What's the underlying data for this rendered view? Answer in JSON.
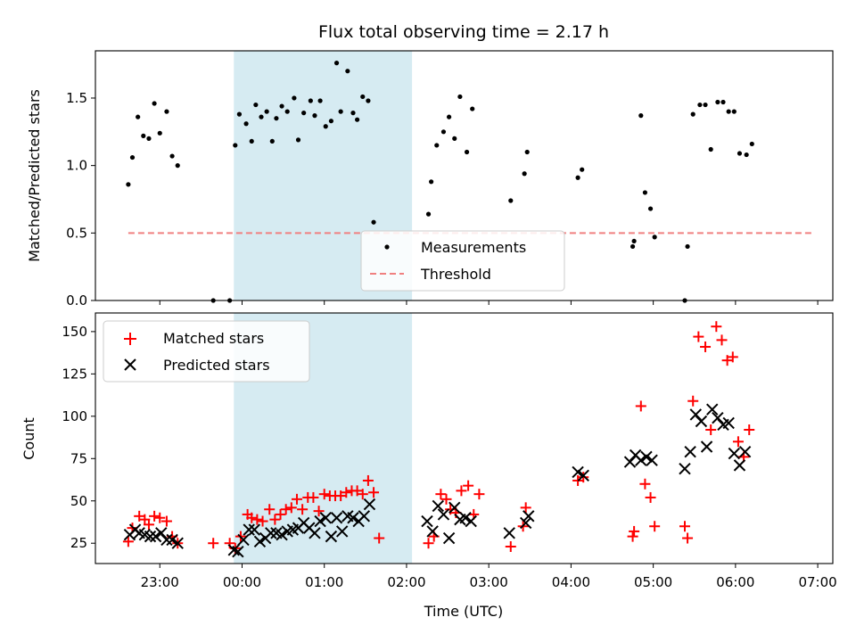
{
  "chart_data": [
    {
      "type": "scatter",
      "title": "Flux total observing time = 2.17 h",
      "xlabel": "",
      "ylabel": "Matched/Predicted stars",
      "xlim": [
        "22:13",
        "07:11"
      ],
      "ylim": [
        0,
        1.85
      ],
      "ytick_labels": [
        "0.0",
        "0.5",
        "1.0",
        "1.5"
      ],
      "yticks": [
        0,
        0.5,
        1.0,
        1.5
      ],
      "highlight_span": {
        "start": "23:54",
        "end": "02:04"
      },
      "legend": {
        "position": "lower-center",
        "entries": [
          "Measurements",
          "Threshold"
        ]
      },
      "threshold": {
        "name": "Threshold",
        "value": 0.5,
        "x": [
          "22:37",
          "06:57"
        ],
        "color": "#f08080"
      },
      "series": [
        {
          "name": "Measurements",
          "color": "#000000",
          "points": [
            [
              "22:37",
              0.86
            ],
            [
              "22:40",
              1.06
            ],
            [
              "22:44",
              1.36
            ],
            [
              "22:48",
              1.22
            ],
            [
              "22:52",
              1.2
            ],
            [
              "22:56",
              1.46
            ],
            [
              "23:00",
              1.24
            ],
            [
              "23:05",
              1.4
            ],
            [
              "23:09",
              1.07
            ],
            [
              "23:13",
              1.0
            ],
            [
              "23:39",
              0.0
            ],
            [
              "23:51",
              0.0
            ],
            [
              "23:55",
              1.15
            ],
            [
              "23:58",
              1.38
            ],
            [
              "00:03",
              1.31
            ],
            [
              "00:07",
              1.18
            ],
            [
              "00:10",
              1.45
            ],
            [
              "00:14",
              1.36
            ],
            [
              "00:18",
              1.4
            ],
            [
              "00:22",
              1.18
            ],
            [
              "00:25",
              1.35
            ],
            [
              "00:29",
              1.44
            ],
            [
              "00:33",
              1.4
            ],
            [
              "00:38",
              1.5
            ],
            [
              "00:41",
              1.19
            ],
            [
              "00:45",
              1.39
            ],
            [
              "00:50",
              1.48
            ],
            [
              "00:53",
              1.37
            ],
            [
              "00:57",
              1.48
            ],
            [
              "01:01",
              1.29
            ],
            [
              "01:05",
              1.33
            ],
            [
              "01:09",
              1.76
            ],
            [
              "01:12",
              1.4
            ],
            [
              "01:17",
              1.7
            ],
            [
              "01:21",
              1.39
            ],
            [
              "01:24",
              1.34
            ],
            [
              "01:28",
              1.51
            ],
            [
              "01:32",
              1.48
            ],
            [
              "01:36",
              0.58
            ],
            [
              "02:16",
              0.64
            ],
            [
              "02:18",
              0.88
            ],
            [
              "02:22",
              1.15
            ],
            [
              "02:27",
              1.25
            ],
            [
              "02:31",
              1.36
            ],
            [
              "02:35",
              1.2
            ],
            [
              "02:39",
              1.51
            ],
            [
              "02:44",
              1.1
            ],
            [
              "02:48",
              1.42
            ],
            [
              "03:16",
              0.74
            ],
            [
              "03:26",
              0.94
            ],
            [
              "03:28",
              1.1
            ],
            [
              "04:05",
              0.91
            ],
            [
              "04:08",
              0.97
            ],
            [
              "04:45",
              0.4
            ],
            [
              "04:46",
              0.44
            ],
            [
              "04:51",
              1.37
            ],
            [
              "04:54",
              0.8
            ],
            [
              "04:58",
              0.68
            ],
            [
              "05:01",
              0.47
            ],
            [
              "05:23",
              0.0
            ],
            [
              "05:25",
              0.4
            ],
            [
              "05:29",
              1.38
            ],
            [
              "05:34",
              1.45
            ],
            [
              "05:38",
              1.45
            ],
            [
              "05:42",
              1.12
            ],
            [
              "05:47",
              1.47
            ],
            [
              "05:51",
              1.47
            ],
            [
              "05:55",
              1.4
            ],
            [
              "05:59",
              1.4
            ],
            [
              "06:03",
              1.09
            ],
            [
              "06:08",
              1.08
            ],
            [
              "06:12",
              1.16
            ]
          ]
        }
      ]
    },
    {
      "type": "scatter",
      "title": "",
      "xlabel": "Time (UTC)",
      "ylabel": "Count",
      "xlim": [
        "22:13",
        "07:11"
      ],
      "ylim": [
        13,
        161
      ],
      "xtick_labels": [
        "23:00",
        "00:00",
        "01:00",
        "02:00",
        "03:00",
        "04:00",
        "05:00",
        "06:00",
        "07:00"
      ],
      "xticks": [
        "23:00",
        "00:00",
        "01:00",
        "02:00",
        "03:00",
        "04:00",
        "05:00",
        "06:00",
        "07:00"
      ],
      "ytick_labels": [
        "25",
        "50",
        "75",
        "100",
        "125",
        "150"
      ],
      "yticks": [
        25,
        50,
        75,
        100,
        125,
        150
      ],
      "highlight_span": {
        "start": "23:54",
        "end": "02:04"
      },
      "legend": {
        "position": "upper-left",
        "entries": [
          "Matched stars",
          "Predicted stars"
        ]
      },
      "series": [
        {
          "name": "Matched stars",
          "marker": "plus",
          "color": "#ff0000",
          "points": [
            [
              "22:37",
              26
            ],
            [
              "22:40",
              34
            ],
            [
              "22:45",
              41
            ],
            [
              "22:49",
              39
            ],
            [
              "22:52",
              36
            ],
            [
              "22:56",
              41
            ],
            [
              "23:00",
              40
            ],
            [
              "23:05",
              38
            ],
            [
              "23:09",
              29
            ],
            [
              "23:13",
              25
            ],
            [
              "23:39",
              25
            ],
            [
              "23:51",
              25
            ],
            [
              "23:55",
              22
            ],
            [
              "23:59",
              29
            ],
            [
              "00:04",
              42
            ],
            [
              "00:07",
              40
            ],
            [
              "00:11",
              39
            ],
            [
              "00:15",
              38
            ],
            [
              "00:20",
              45
            ],
            [
              "00:24",
              39
            ],
            [
              "00:28",
              42
            ],
            [
              "00:32",
              45
            ],
            [
              "00:36",
              46
            ],
            [
              "00:40",
              51
            ],
            [
              "00:44",
              45
            ],
            [
              "00:48",
              52
            ],
            [
              "00:52",
              52
            ],
            [
              "00:56",
              44
            ],
            [
              "01:00",
              54
            ],
            [
              "01:04",
              53
            ],
            [
              "01:08",
              53
            ],
            [
              "01:12",
              53
            ],
            [
              "01:16",
              55
            ],
            [
              "01:20",
              56
            ],
            [
              "01:24",
              56
            ],
            [
              "01:28",
              54
            ],
            [
              "01:32",
              62
            ],
            [
              "01:36",
              55
            ],
            [
              "01:40",
              28
            ],
            [
              "02:16",
              25
            ],
            [
              "02:20",
              29
            ],
            [
              "02:25",
              54
            ],
            [
              "02:29",
              51
            ],
            [
              "02:32",
              45
            ],
            [
              "02:36",
              43
            ],
            [
              "02:40",
              56
            ],
            [
              "02:45",
              59
            ],
            [
              "02:49",
              42
            ],
            [
              "02:53",
              54
            ],
            [
              "03:16",
              23
            ],
            [
              "03:25",
              35
            ],
            [
              "03:27",
              46
            ],
            [
              "04:05",
              62
            ],
            [
              "04:09",
              64
            ],
            [
              "04:45",
              29
            ],
            [
              "04:46",
              32
            ],
            [
              "04:51",
              106
            ],
            [
              "04:54",
              60
            ],
            [
              "04:58",
              52
            ],
            [
              "05:01",
              35
            ],
            [
              "05:23",
              35
            ],
            [
              "05:25",
              28
            ],
            [
              "05:29",
              109
            ],
            [
              "05:33",
              147
            ],
            [
              "05:38",
              141
            ],
            [
              "05:42",
              92
            ],
            [
              "05:46",
              153
            ],
            [
              "05:50",
              145
            ],
            [
              "05:54",
              133
            ],
            [
              "05:58",
              135
            ],
            [
              "06:02",
              85
            ],
            [
              "06:06",
              76
            ],
            [
              "06:10",
              92
            ]
          ]
        },
        {
          "name": "Predicted stars",
          "marker": "x",
          "color": "#000000",
          "points": [
            [
              "22:38",
              30
            ],
            [
              "22:42",
              33
            ],
            [
              "22:45",
              31
            ],
            [
              "22:49",
              30
            ],
            [
              "22:53",
              29
            ],
            [
              "22:57",
              29
            ],
            [
              "23:01",
              31
            ],
            [
              "23:05",
              27
            ],
            [
              "23:09",
              27
            ],
            [
              "23:13",
              25
            ],
            [
              "23:54",
              21
            ],
            [
              "23:57",
              20
            ],
            [
              "00:01",
              27
            ],
            [
              "00:05",
              33
            ],
            [
              "00:09",
              33
            ],
            [
              "00:13",
              26
            ],
            [
              "00:17",
              28
            ],
            [
              "00:21",
              31
            ],
            [
              "00:25",
              31
            ],
            [
              "00:29",
              30
            ],
            [
              "00:33",
              32
            ],
            [
              "00:37",
              33
            ],
            [
              "00:41",
              34
            ],
            [
              "00:45",
              37
            ],
            [
              "00:49",
              34
            ],
            [
              "00:53",
              31
            ],
            [
              "00:57",
              38
            ],
            [
              "01:01",
              40
            ],
            [
              "01:05",
              29
            ],
            [
              "01:09",
              40
            ],
            [
              "01:13",
              32
            ],
            [
              "01:17",
              41
            ],
            [
              "01:21",
              40
            ],
            [
              "01:25",
              38
            ],
            [
              "01:29",
              41
            ],
            [
              "01:33",
              48
            ],
            [
              "02:15",
              38
            ],
            [
              "02:19",
              32
            ],
            [
              "02:23",
              47
            ],
            [
              "02:27",
              42
            ],
            [
              "02:31",
              28
            ],
            [
              "02:35",
              46
            ],
            [
              "02:39",
              39
            ],
            [
              "02:43",
              40
            ],
            [
              "02:47",
              38
            ],
            [
              "03:15",
              31
            ],
            [
              "03:27",
              37
            ],
            [
              "03:29",
              41
            ],
            [
              "04:05",
              67
            ],
            [
              "04:09",
              65
            ],
            [
              "04:43",
              73
            ],
            [
              "04:47",
              77
            ],
            [
              "04:51",
              74
            ],
            [
              "04:55",
              76
            ],
            [
              "04:59",
              74
            ],
            [
              "05:23",
              69
            ],
            [
              "05:27",
              79
            ],
            [
              "05:31",
              101
            ],
            [
              "05:35",
              97
            ],
            [
              "05:39",
              82
            ],
            [
              "05:43",
              104
            ],
            [
              "05:47",
              99
            ],
            [
              "05:51",
              95
            ],
            [
              "05:55",
              96
            ],
            [
              "05:59",
              78
            ],
            [
              "06:03",
              71
            ],
            [
              "06:07",
              79
            ]
          ]
        }
      ]
    }
  ]
}
